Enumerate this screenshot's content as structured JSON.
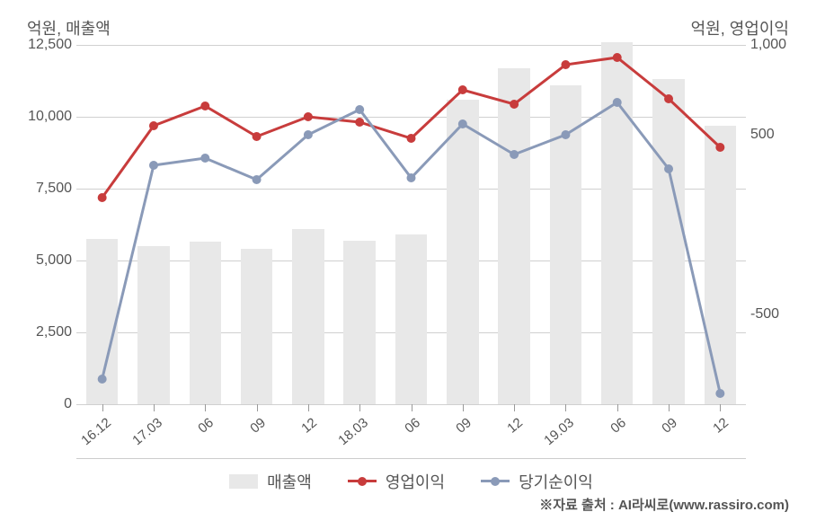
{
  "chart": {
    "type": "combo-bar-line",
    "left_axis_title": "억원, 매출액",
    "right_axis_title": "억원, 영업이익",
    "source_text": "※자료 출처 : AI라씨로(www.rassiro.com)",
    "background_color": "#ffffff",
    "grid_color": "#d0d0d0",
    "text_color": "#555555",
    "left_axis": {
      "min": 0,
      "max": 12500,
      "ticks": [
        0,
        2500,
        5000,
        7500,
        10000,
        12500
      ],
      "tick_labels": [
        "0",
        "2,500",
        "5,000",
        "7,500",
        "10,000",
        "12,500"
      ]
    },
    "right_axis": {
      "min": -1000,
      "max": 1000,
      "ticks": [
        -500,
        500,
        1000
      ],
      "tick_labels": [
        "-500",
        "500",
        "1,000"
      ]
    },
    "categories": [
      "16.12",
      "17.03",
      "06",
      "09",
      "12",
      "18.03",
      "06",
      "09",
      "12",
      "19.03",
      "06",
      "09",
      "12"
    ],
    "bar_series": {
      "name": "매출액",
      "color": "#e8e8e8",
      "values": [
        5750,
        5500,
        5650,
        5400,
        6100,
        5700,
        5900,
        10600,
        11700,
        11100,
        12600,
        11300,
        9700
      ],
      "bar_width": 0.62
    },
    "line_series": [
      {
        "name": "영업이익",
        "color": "#c83c3c",
        "line_width": 3,
        "marker_size": 5,
        "values": [
          150,
          550,
          660,
          490,
          600,
          570,
          480,
          750,
          670,
          890,
          930,
          700,
          430
        ]
      },
      {
        "name": "당기순이익",
        "color": "#8a9ab8",
        "line_width": 3,
        "marker_size": 5,
        "values": [
          -860,
          330,
          370,
          250,
          500,
          640,
          260,
          560,
          390,
          500,
          680,
          310,
          -940
        ]
      }
    ],
    "legend_items": [
      {
        "type": "bar",
        "label": "매출액",
        "color": "#e8e8e8"
      },
      {
        "type": "line",
        "label": "영업이익",
        "color": "#c83c3c"
      },
      {
        "type": "line",
        "label": "당기순이익",
        "color": "#8a9ab8"
      }
    ]
  }
}
